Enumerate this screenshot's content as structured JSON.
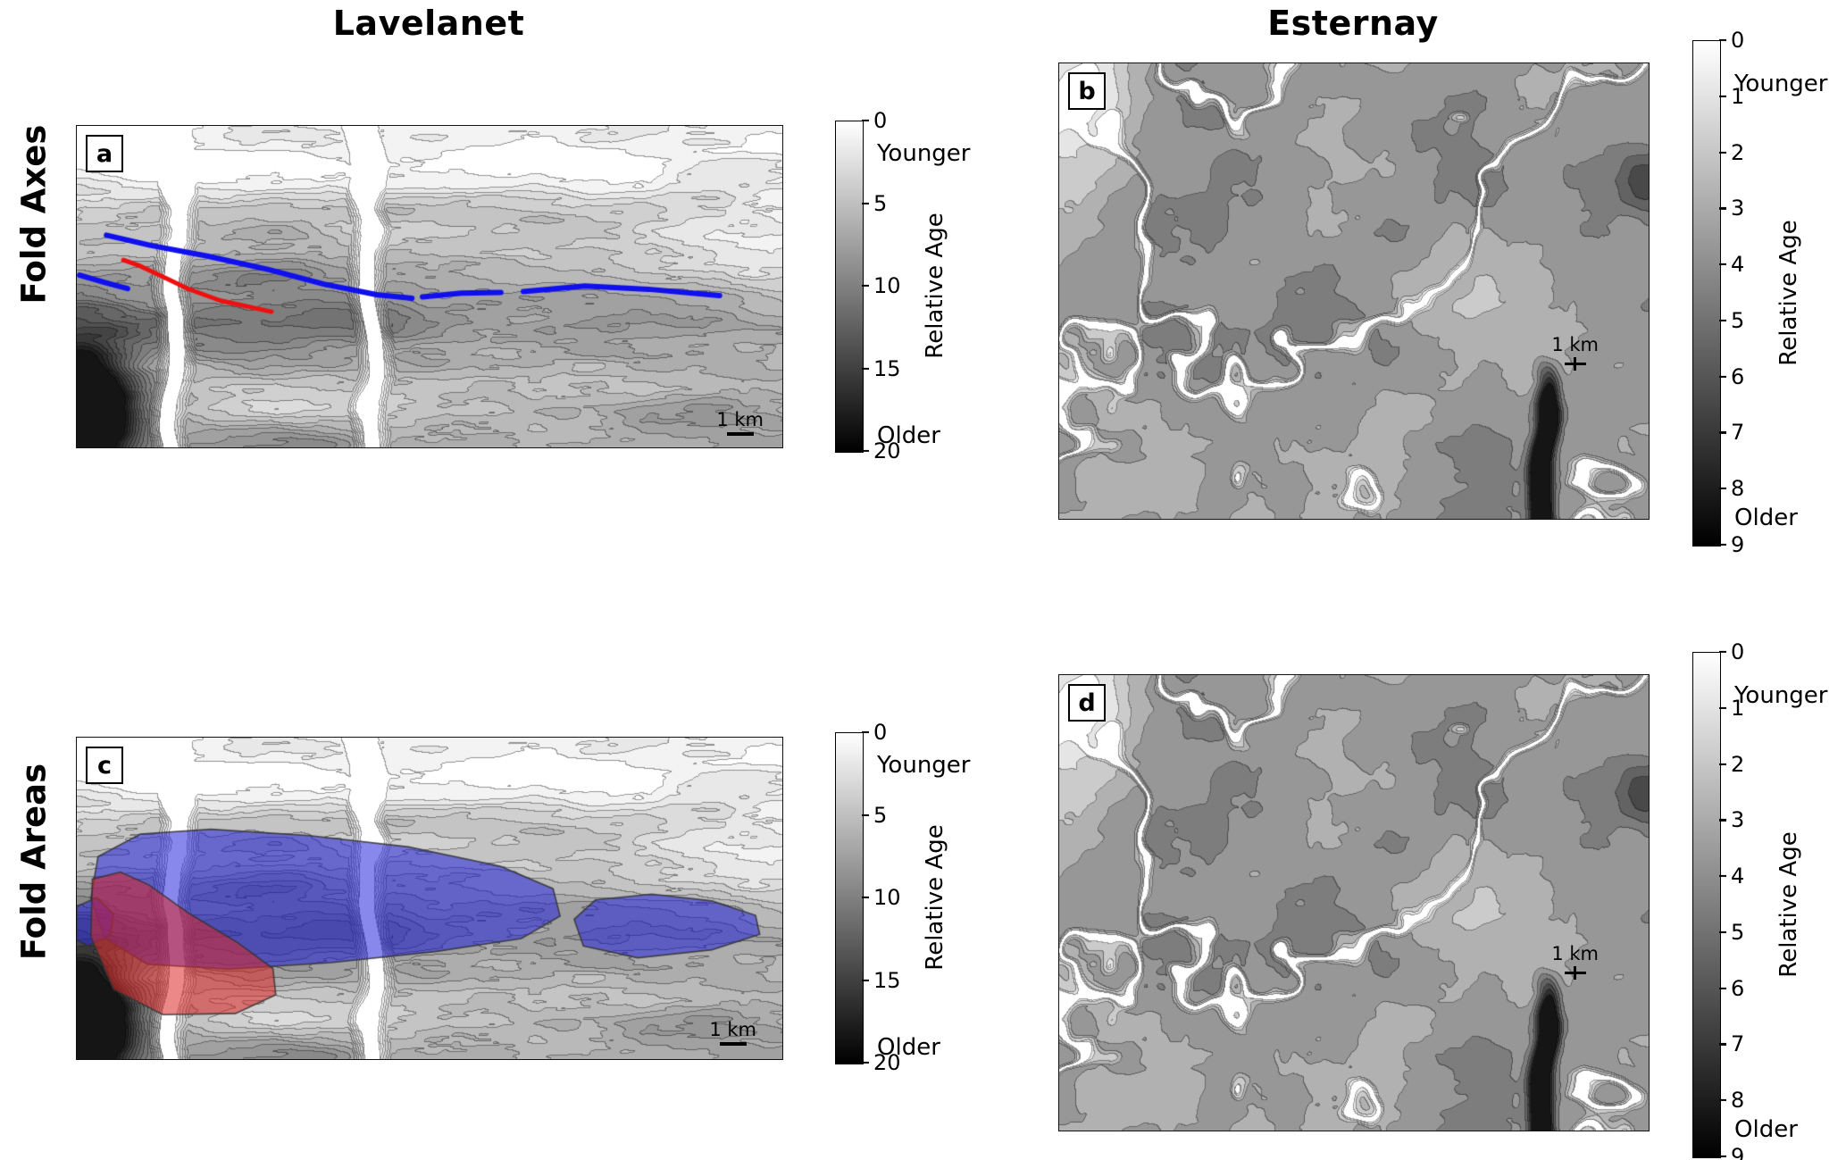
{
  "figure_titles": {
    "left_column": "Lavelanet",
    "right_column": "Esternay"
  },
  "row_labels": {
    "top": "Fold Axes",
    "bottom": "Fold Areas"
  },
  "colors": {
    "colorbar_top": "#ffffff",
    "colorbar_bottom": "#000000",
    "fold_axis_blue": "#1010ee",
    "fold_axis_red": "#ee1010",
    "fold_area_blue": "#2626dd",
    "fold_area_red": "#dd2626"
  },
  "panels": {
    "a": {
      "letter": "a",
      "region": "Lavelanet",
      "row": "Fold Axes",
      "scale_label": "1 km",
      "colorbar": {
        "ticks": [
          0,
          5,
          10,
          15,
          20
        ],
        "min": 0,
        "max": 20,
        "top_label": "Younger",
        "bottom_label": "Older",
        "axis_label": "Relative Age"
      }
    },
    "b": {
      "letter": "b",
      "region": "Esternay",
      "row": "Fold Axes",
      "scale_label": "1 km",
      "colorbar": {
        "ticks": [
          0,
          1,
          2,
          3,
          4,
          5,
          6,
          7,
          8,
          9
        ],
        "min": 0,
        "max": 9,
        "top_label": "Younger",
        "bottom_label": "Older",
        "axis_label": "Relative Age"
      }
    },
    "c": {
      "letter": "c",
      "region": "Lavelanet",
      "row": "Fold Areas",
      "scale_label": "1 km",
      "colorbar": {
        "ticks": [
          0,
          5,
          10,
          15,
          20
        ],
        "min": 0,
        "max": 20,
        "top_label": "Younger",
        "bottom_label": "Older",
        "axis_label": "Relative Age"
      }
    },
    "d": {
      "letter": "d",
      "region": "Esternay",
      "row": "Fold Areas",
      "scale_label": "1 km",
      "colorbar": {
        "ticks": [
          0,
          1,
          2,
          3,
          4,
          5,
          6,
          7,
          8,
          9
        ],
        "min": 0,
        "max": 9,
        "top_label": "Younger",
        "bottom_label": "Older",
        "axis_label": "Relative Age"
      }
    }
  },
  "overlays": {
    "a_fold_axes": [
      {
        "color": "#1010ee",
        "width": 6,
        "points": [
          [
            0.042,
            0.34
          ],
          [
            0.105,
            0.372
          ],
          [
            0.185,
            0.405
          ],
          [
            0.272,
            0.447
          ],
          [
            0.35,
            0.492
          ],
          [
            0.425,
            0.525
          ],
          [
            0.475,
            0.536
          ]
        ]
      },
      {
        "color": "#1010ee",
        "width": 6,
        "points": [
          [
            0.49,
            0.532
          ],
          [
            0.545,
            0.52
          ],
          [
            0.601,
            0.518
          ]
        ]
      },
      {
        "color": "#1010ee",
        "width": 6,
        "points": [
          [
            0.633,
            0.515
          ],
          [
            0.72,
            0.498
          ],
          [
            0.81,
            0.508
          ],
          [
            0.911,
            0.528
          ]
        ]
      },
      {
        "color": "#1010ee",
        "width": 6,
        "points": [
          [
            0.004,
            0.464
          ],
          [
            0.04,
            0.487
          ],
          [
            0.072,
            0.506
          ]
        ]
      },
      {
        "color": "#ee1010",
        "width": 5,
        "points": [
          [
            0.066,
            0.417
          ],
          [
            0.09,
            0.436
          ],
          [
            0.121,
            0.468
          ],
          [
            0.158,
            0.507
          ],
          [
            0.203,
            0.543
          ],
          [
            0.253,
            0.567
          ],
          [
            0.276,
            0.578
          ]
        ]
      }
    ],
    "c_fold_areas": [
      {
        "color": "#2626dd",
        "points": [
          [
            0.02,
            0.5
          ],
          [
            0.03,
            0.37
          ],
          [
            0.09,
            0.3
          ],
          [
            0.19,
            0.285
          ],
          [
            0.33,
            0.305
          ],
          [
            0.47,
            0.34
          ],
          [
            0.6,
            0.4
          ],
          [
            0.675,
            0.47
          ],
          [
            0.685,
            0.555
          ],
          [
            0.63,
            0.625
          ],
          [
            0.51,
            0.665
          ],
          [
            0.36,
            0.7
          ],
          [
            0.215,
            0.72
          ],
          [
            0.1,
            0.705
          ],
          [
            0.04,
            0.625
          ]
        ]
      },
      {
        "color": "#2626dd",
        "points": [
          [
            0.705,
            0.565
          ],
          [
            0.735,
            0.505
          ],
          [
            0.815,
            0.487
          ],
          [
            0.9,
            0.508
          ],
          [
            0.962,
            0.553
          ],
          [
            0.968,
            0.612
          ],
          [
            0.9,
            0.66
          ],
          [
            0.795,
            0.685
          ],
          [
            0.718,
            0.648
          ]
        ]
      },
      {
        "color": "#2626dd",
        "points": [
          [
            0.0,
            0.525
          ],
          [
            0.028,
            0.498
          ],
          [
            0.052,
            0.548
          ],
          [
            0.047,
            0.617
          ],
          [
            0.016,
            0.648
          ],
          [
            0.0,
            0.63
          ]
        ]
      },
      {
        "color": "#dd2626",
        "points": [
          [
            0.022,
            0.44
          ],
          [
            0.062,
            0.418
          ],
          [
            0.102,
            0.458
          ],
          [
            0.16,
            0.548
          ],
          [
            0.228,
            0.638
          ],
          [
            0.278,
            0.718
          ],
          [
            0.282,
            0.8
          ],
          [
            0.225,
            0.858
          ],
          [
            0.122,
            0.862
          ],
          [
            0.052,
            0.783
          ],
          [
            0.02,
            0.62
          ]
        ]
      }
    ]
  }
}
